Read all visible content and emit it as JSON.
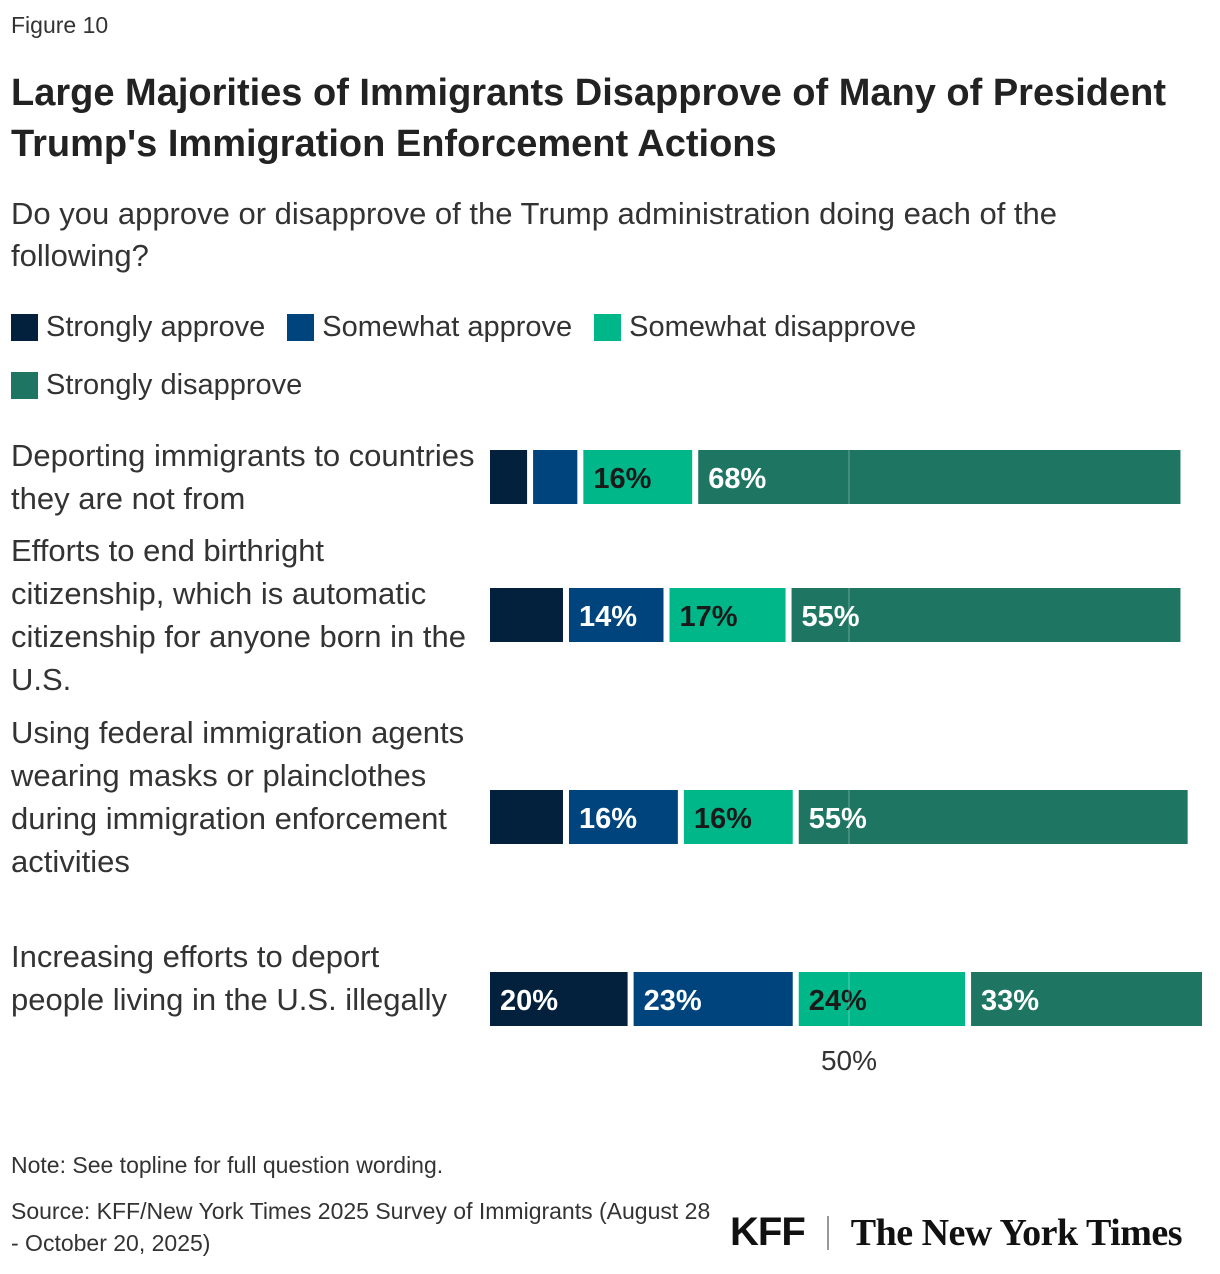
{
  "figure_label": "Figure 10",
  "title": "Large Majorities of Immigrants Disapprove of Many of President Trump's Immigration Enforcement Actions",
  "subtitle": "Do you approve or disapprove of the Trump administration doing each of the following?",
  "note": "Note: See topline for full question wording.",
  "source": "Source: KFF/New York Times 2025 Survey of Immigrants (August 28 - October 20, 2025)",
  "logos": {
    "kff": "KFF",
    "nyt": "The New York Times"
  },
  "colors": {
    "strongly_approve": "#03213d",
    "somewhat_approve": "#00447e",
    "somewhat_disapprove": "#00b78a",
    "strongly_disapprove": "#1d7562",
    "label_dark": "#1a1a1a",
    "label_light": "#ffffff"
  },
  "chart_data": {
    "type": "bar",
    "orientation": "horizontal",
    "stacked": true,
    "categories": [
      "Deporting immigrants to countries they are not from",
      "Efforts to end birthright citizenship, which is automatic citizenship for anyone born in the U.S.",
      "Using federal immigration agents wearing masks or plainclothes during immigration enforcement activities",
      "Increasing efforts to deport people living in the U.S. illegally"
    ],
    "series": [
      {
        "name": "Strongly approve",
        "values": [
          6,
          11,
          11,
          20
        ],
        "labels": [
          "",
          "",
          "",
          "20%"
        ]
      },
      {
        "name": "Somewhat approve",
        "values": [
          7,
          14,
          16,
          23
        ],
        "labels": [
          "",
          "14%",
          "16%",
          "23%"
        ]
      },
      {
        "name": "Somewhat disapprove",
        "values": [
          16,
          17,
          16,
          24
        ],
        "labels": [
          "16%",
          "17%",
          "16%",
          "24%"
        ]
      },
      {
        "name": "Strongly disapprove",
        "values": [
          68,
          55,
          55,
          33
        ],
        "labels": [
          "68%",
          "55%",
          "55%",
          "33%"
        ]
      }
    ],
    "xlim": [
      0,
      100
    ],
    "reference_line": {
      "value": 50,
      "label": "50%"
    },
    "legend_position": "top"
  }
}
